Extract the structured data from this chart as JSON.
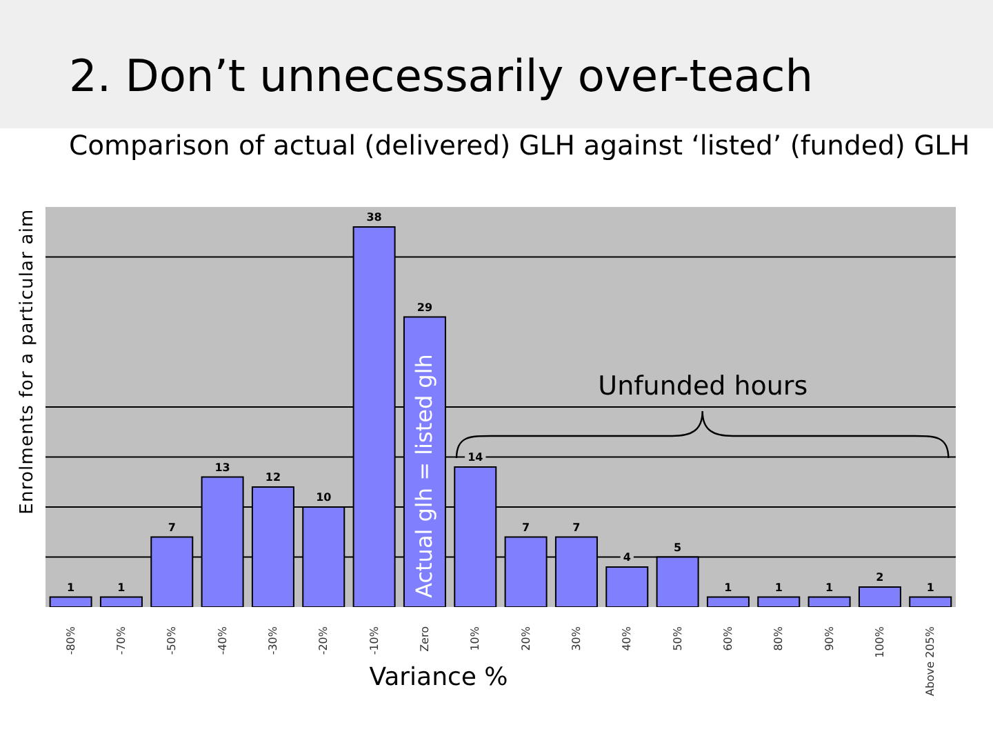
{
  "chart_data": {
    "type": "bar",
    "title": "2. Don’t unnecessarily over-teach",
    "subtitle": "Comparison of actual (delivered) GLH against ‘listed’ (funded) GLH",
    "xlabel": "Variance %",
    "ylabel": "Enrolments for a particular aim",
    "categories": [
      "-80%",
      "-70%",
      "-50%",
      "-40%",
      "-30%",
      "-20%",
      "-10%",
      "Zero",
      "10%",
      "20%",
      "30%",
      "40%",
      "50%",
      "60%",
      "80%",
      "90%",
      "100%",
      "Above 205%"
    ],
    "values": [
      1,
      1,
      7,
      13,
      12,
      10,
      38,
      29,
      14,
      7,
      7,
      4,
      5,
      1,
      1,
      1,
      2,
      1
    ],
    "color": "#8080ff",
    "ylim": [
      0,
      40
    ],
    "yticks": [
      {
        "value": 5,
        "label": null
      },
      {
        "value": 10,
        "label": null
      },
      {
        "value": 15,
        "label": null
      },
      {
        "value": 20,
        "label": null
      },
      {
        "value": 35,
        "label": null
      }
    ],
    "grid": "y",
    "tick_labels": "x",
    "data_labels": true,
    "annotations": [
      "Actual glh = listed glh",
      "Unfunded hours"
    ]
  }
}
